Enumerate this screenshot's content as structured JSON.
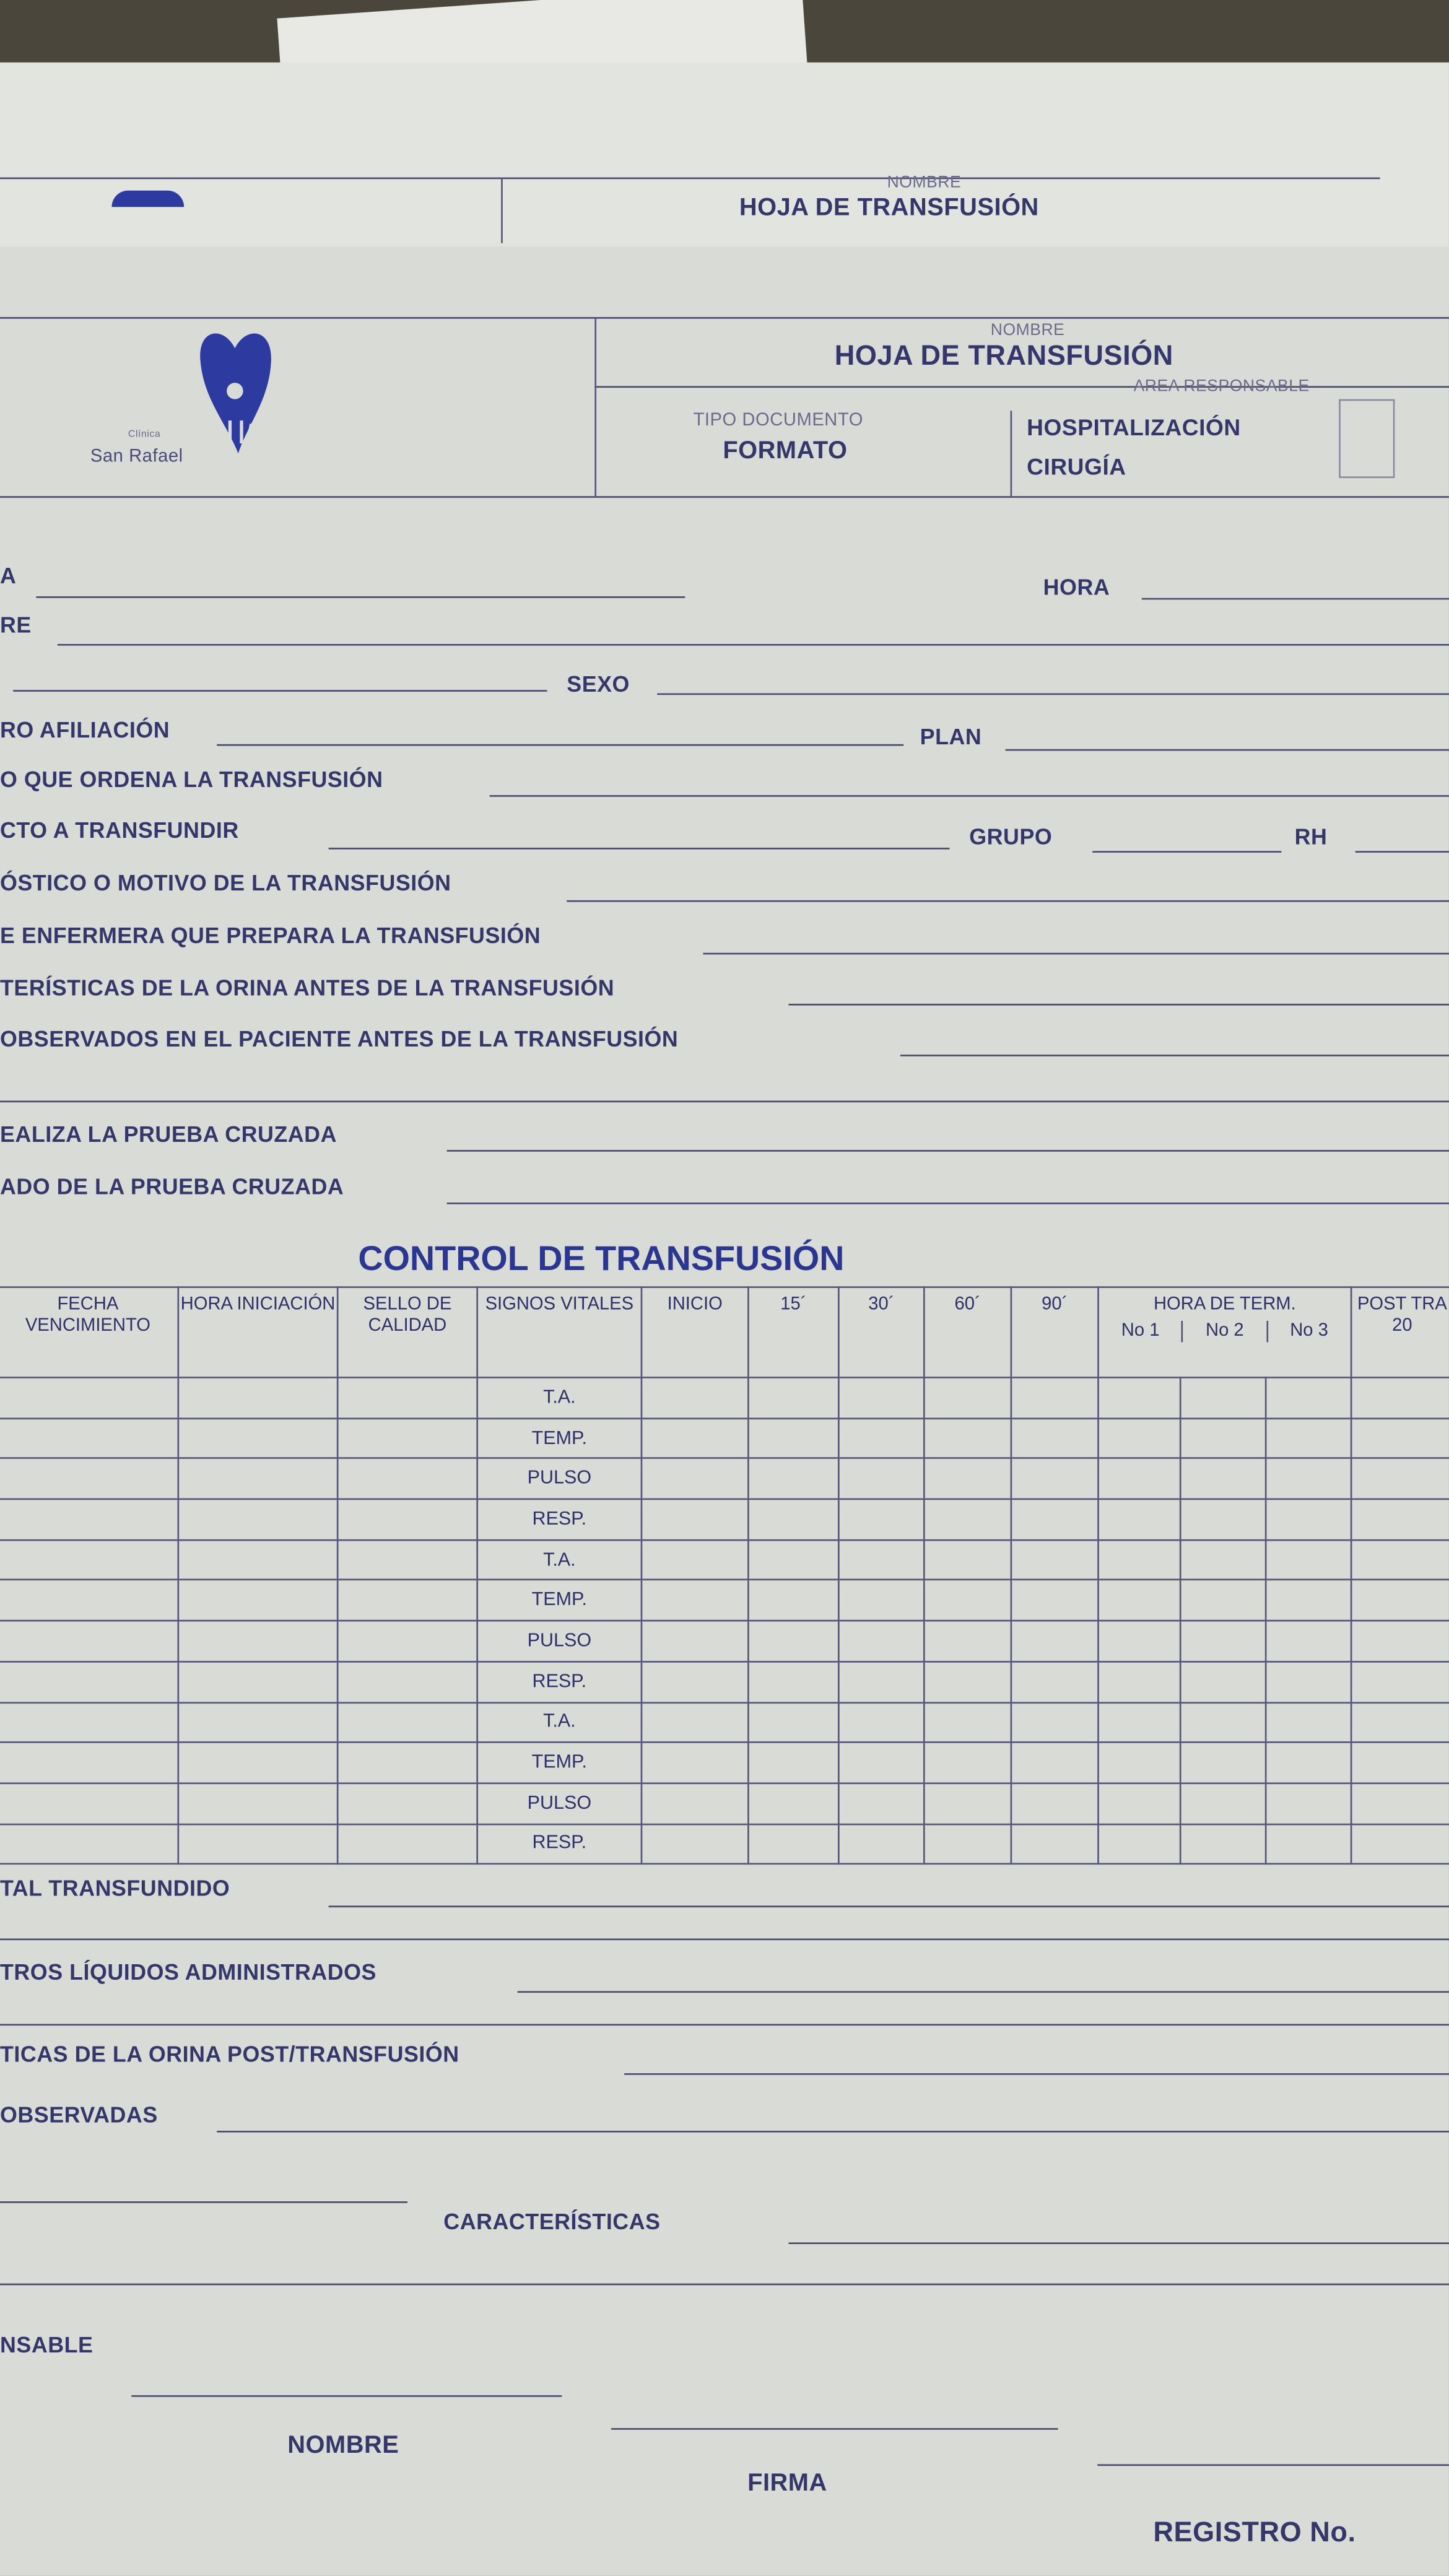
{
  "back_sheet": {
    "name_label": "NOMBRE",
    "title": "HOJA DE TRANSFUSIÓN"
  },
  "header": {
    "logo_text_small": "Clínica",
    "logo_text": "San Rafael",
    "name_label": "NOMBRE",
    "title": "HOJA DE TRANSFUSIÓN",
    "doc_type_label": "TIPO DOCUMENTO",
    "doc_type": "FORMATO",
    "area_label": "AREA RESPONSABLE",
    "areas": [
      "HOSPITALIZACIÓN",
      "CIRUGÍA"
    ]
  },
  "fields": {
    "fecha": "A",
    "hora": "HORA",
    "nombre": "RE",
    "sexo": "SEXO",
    "afiliacion": "RO AFILIACIÓN",
    "plan": "PLAN",
    "medico": "O QUE ORDENA LA TRANSFUSIÓN",
    "producto": "CTO A TRANSFUNDIR",
    "grupo": "GRUPO",
    "rh": "RH",
    "diagnostico": "ÓSTICO O MOTIVO DE LA TRANSFUSIÓN",
    "enfermera": "E ENFERMERA QUE PREPARA LA TRANSFUSIÓN",
    "orina_antes": "TERÍSTICAS DE LA ORINA ANTES DE LA TRANSFUSIÓN",
    "observados": "OBSERVADOS EN EL PACIENTE ANTES DE LA TRANSFUSIÓN",
    "prueba_quien": "EALIZA LA PRUEBA CRUZADA",
    "prueba_resultado": "ADO DE LA PRUEBA CRUZADA"
  },
  "control": {
    "title": "CONTROL DE TRANSFUSIÓN",
    "columns": [
      "FECHA VENCIMIENTO",
      "HORA INICIACIÓN",
      "SELLO DE CALIDAD",
      "SIGNOS VITALES",
      "INICIO",
      "15´",
      "30´",
      "60´",
      "90´",
      "HORA DE TERM.",
      "POST TRA 20"
    ],
    "subcolumns": [
      "No 1",
      "No 2",
      "No 3"
    ],
    "vital_signs": [
      "T.A.",
      "TEMP.",
      "PULSO",
      "RESP.",
      "T.A.",
      "TEMP.",
      "PULSO",
      "RESP.",
      "T.A.",
      "TEMP.",
      "PULSO",
      "RESP."
    ]
  },
  "footer": {
    "total": "TAL TRANSFUNDIDO",
    "otros": "TROS LÍQUIDOS ADMINISTRADOS",
    "orina_post": "TICAS DE LA ORINA POST/TRANSFUSIÓN",
    "observadas": "OBSERVADAS",
    "caracteristicas": "CARACTERÍSTICAS",
    "responsable": "NSABLE",
    "nombre": "NOMBRE",
    "firma": "FIRMA",
    "registro": "REGISTRO No."
  }
}
